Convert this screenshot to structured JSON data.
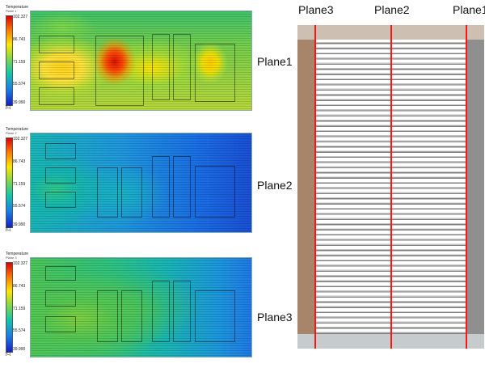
{
  "legend": {
    "title": "Temperature",
    "ticks": [
      "102.327",
      "86.743",
      "71.159",
      "55.574",
      "39.990"
    ],
    "unit": "[C]"
  },
  "panels": [
    {
      "subtitle": "Plane 1",
      "label": "Plane1"
    },
    {
      "subtitle": "Plane 2",
      "label": "Plane2"
    },
    {
      "subtitle": "Plane 3",
      "label": "Plane3"
    }
  ],
  "schematic": {
    "labels": [
      "Plane3",
      "Plane2",
      "Plane1"
    ],
    "colors": {
      "plane_lines": "#ff1414",
      "left_block": "#a7856b",
      "right_block": "#8f8f8f",
      "top_block": "#cdbfb2",
      "bottom_block": "#c6cbcd"
    }
  },
  "colormap": [
    "#e00000",
    "#ff7a00",
    "#ffe600",
    "#7fd84a",
    "#12c7a8",
    "#1a7fe8",
    "#1020c8"
  ]
}
